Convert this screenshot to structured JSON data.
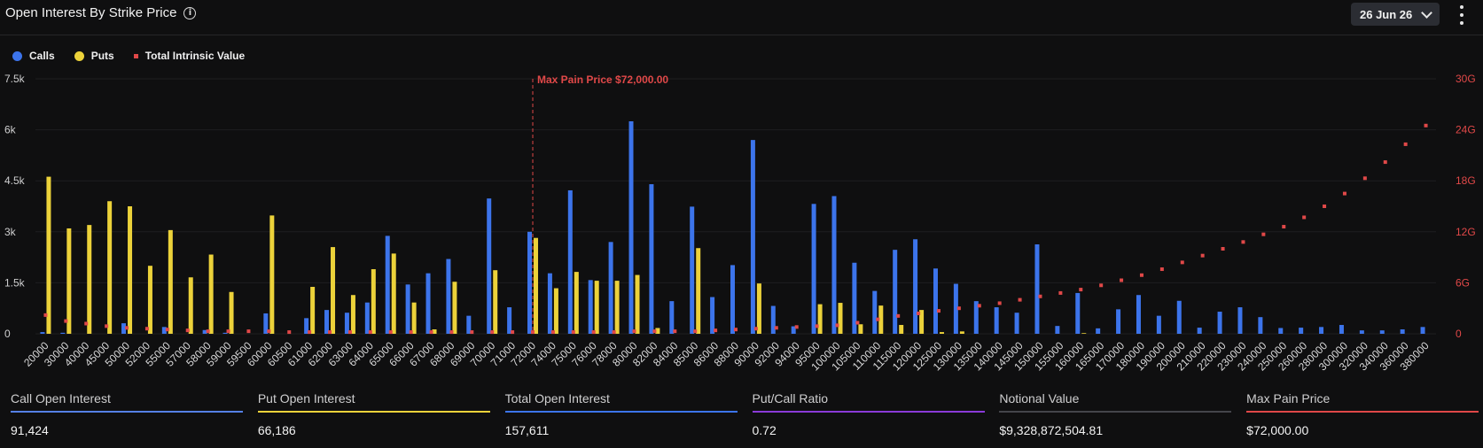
{
  "header": {
    "title": "Open Interest By Strike Price",
    "date_label": "26 Jun 26"
  },
  "legend": {
    "calls": {
      "label": "Calls",
      "color": "#3c74eb"
    },
    "puts": {
      "label": "Puts",
      "color": "#ecd23a"
    },
    "intrinsic": {
      "label": "Total Intrinsic Value",
      "color": "#e04848"
    }
  },
  "chart_data": {
    "type": "bar",
    "categories": [
      "20000",
      "30000",
      "40000",
      "45000",
      "50000",
      "52000",
      "55000",
      "57000",
      "58000",
      "59000",
      "59500",
      "60000",
      "60500",
      "61000",
      "62000",
      "63000",
      "64000",
      "65000",
      "66000",
      "67000",
      "68000",
      "69000",
      "70000",
      "71000",
      "72000",
      "74000",
      "75000",
      "76000",
      "78000",
      "80000",
      "82000",
      "84000",
      "85000",
      "86000",
      "88000",
      "90000",
      "92000",
      "94000",
      "95000",
      "100000",
      "105000",
      "110000",
      "115000",
      "120000",
      "125000",
      "130000",
      "135000",
      "140000",
      "145000",
      "150000",
      "155000",
      "160000",
      "165000",
      "170000",
      "180000",
      "190000",
      "200000",
      "210000",
      "220000",
      "230000",
      "240000",
      "250000",
      "260000",
      "280000",
      "300000",
      "320000",
      "340000",
      "360000",
      "380000"
    ],
    "series": [
      {
        "name": "Calls",
        "axis": "left",
        "values": [
          50,
          30,
          0,
          0,
          310,
          0,
          200,
          0,
          110,
          30,
          0,
          600,
          0,
          460,
          700,
          620,
          920,
          2880,
          1450,
          1780,
          2200,
          530,
          3980,
          780,
          3000,
          1780,
          4220,
          1580,
          2700,
          6250,
          4400,
          960,
          3740,
          1080,
          2020,
          5700,
          820,
          220,
          3820,
          4050,
          2090,
          1260,
          2470,
          2780,
          1920,
          1470,
          960,
          780,
          620,
          2630,
          230,
          1200,
          160,
          720,
          1140,
          530,
          970,
          180,
          650,
          780,
          490,
          170,
          180,
          200,
          260,
          100,
          100,
          130,
          200
        ]
      },
      {
        "name": "Puts",
        "axis": "left",
        "values": [
          4620,
          3100,
          3200,
          3900,
          3750,
          2000,
          3050,
          1660,
          2330,
          1230,
          0,
          3480,
          0,
          1380,
          2550,
          1140,
          1900,
          2360,
          920,
          130,
          1530,
          0,
          1870,
          0,
          2820,
          1340,
          1820,
          1560,
          1560,
          1730,
          170,
          0,
          2520,
          0,
          0,
          1480,
          0,
          0,
          870,
          910,
          280,
          830,
          260,
          700,
          50,
          70,
          0,
          0,
          0,
          0,
          0,
          20,
          0,
          0,
          0,
          0,
          0,
          0,
          0,
          0,
          0,
          0,
          0,
          0,
          0,
          0,
          0,
          0,
          0
        ]
      },
      {
        "name": "Total Intrinsic Value",
        "axis": "right",
        "values": [
          2.2,
          1.5,
          1.2,
          0.9,
          0.7,
          0.6,
          0.5,
          0.4,
          0.3,
          0.3,
          0.3,
          0.3,
          0.2,
          0.2,
          0.2,
          0.2,
          0.2,
          0.2,
          0.2,
          0.2,
          0.2,
          0.2,
          0.2,
          0.2,
          0.2,
          0.2,
          0.2,
          0.2,
          0.2,
          0.3,
          0.3,
          0.3,
          0.3,
          0.4,
          0.5,
          0.6,
          0.7,
          0.8,
          0.9,
          1.0,
          1.3,
          1.7,
          2.1,
          2.4,
          2.7,
          3.0,
          3.3,
          3.6,
          4.0,
          4.4,
          4.8,
          5.2,
          5.7,
          6.3,
          6.9,
          7.6,
          8.4,
          9.2,
          10.0,
          10.8,
          11.7,
          12.6,
          13.7,
          15.0,
          16.5,
          18.3,
          20.2,
          22.3,
          24.5
        ]
      }
    ],
    "y_left": {
      "min": 0,
      "max": 7500,
      "ticks": [
        0,
        1500,
        3000,
        4500,
        6000,
        7500
      ],
      "tick_labels": [
        "0",
        "1.5k",
        "3k",
        "4.5k",
        "6k",
        "7.5k"
      ]
    },
    "y_right": {
      "min": 0,
      "max": 30,
      "ticks": [
        0,
        6,
        12,
        18,
        24,
        30
      ],
      "tick_labels": [
        "0",
        "6G",
        "12G",
        "18G",
        "24G",
        "30G"
      ]
    },
    "max_pain": {
      "category": "72000",
      "label": "Max Pain Price $72,000.00",
      "color": "#e04848"
    },
    "grid": true,
    "legend_position": "top-left"
  },
  "stats": [
    {
      "label": "Call Open Interest",
      "value": "91,424",
      "color": "#5580e6"
    },
    {
      "label": "Put Open Interest",
      "value": "66,186",
      "color": "#ecd23a"
    },
    {
      "label": "Total Open Interest",
      "value": "157,611",
      "color": "#3c74eb"
    },
    {
      "label": "Put/Call Ratio",
      "value": "0.72",
      "color": "#8a3ad8"
    },
    {
      "label": "Notional Value",
      "value": "$9,328,872,504.81",
      "color": "#44454a"
    },
    {
      "label": "Max Pain Price",
      "value": "$72,000.00",
      "color": "#e04848"
    }
  ]
}
